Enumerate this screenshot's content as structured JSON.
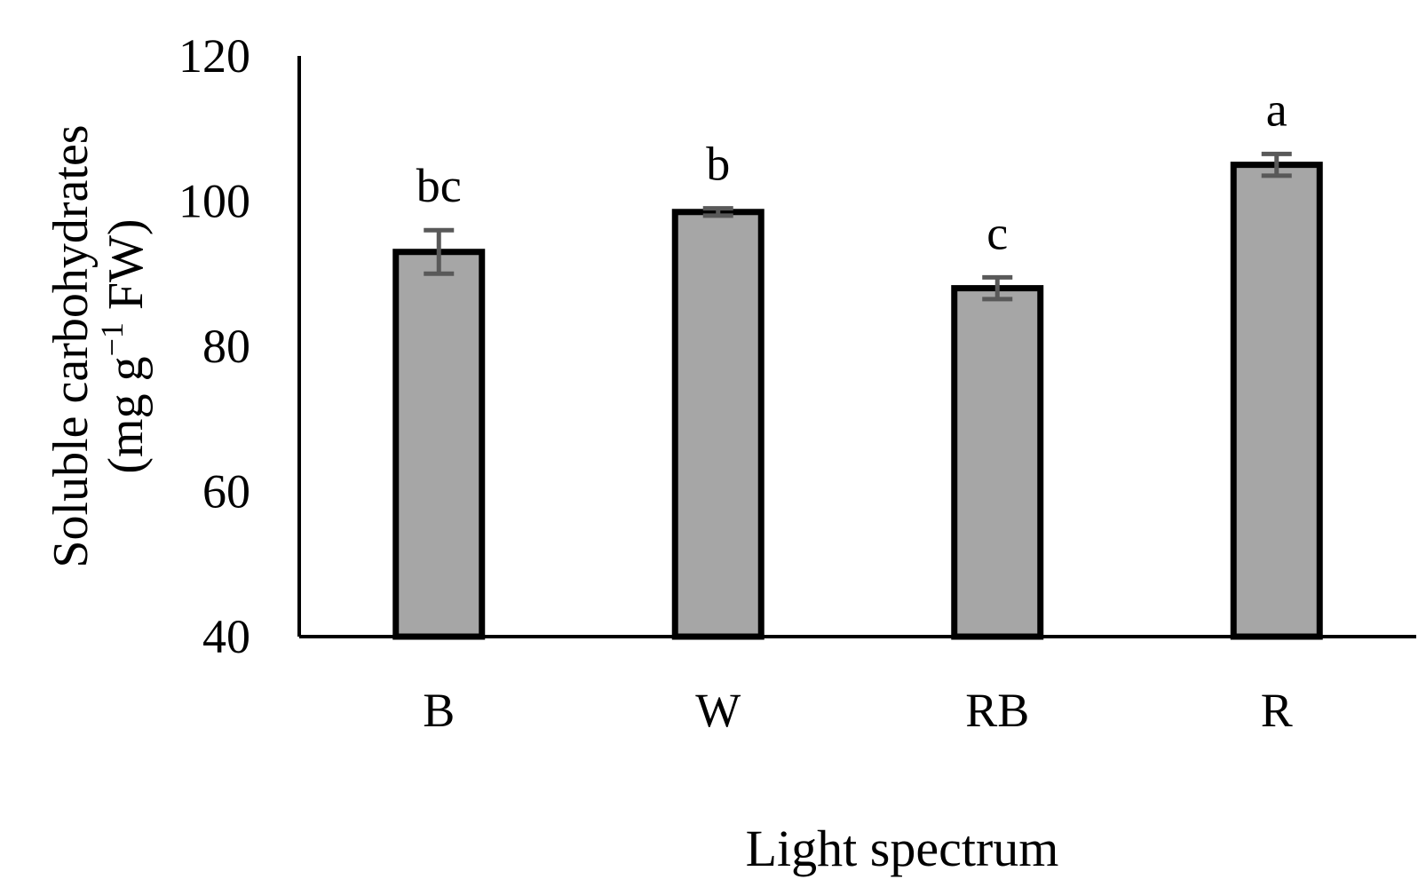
{
  "chart_data": {
    "type": "bar",
    "categories": [
      "B",
      "W",
      "RB",
      "R"
    ],
    "values": [
      93.0,
      98.5,
      88.0,
      105.0
    ],
    "errors": [
      3.0,
      0.5,
      1.5,
      1.5
    ],
    "significance": [
      "bc",
      "b",
      "c",
      "a"
    ],
    "xlabel": "Light spectrum",
    "ylabel": "Soluble carbohydrates",
    "ylabel_unit": {
      "prefix": "(mg g",
      "superscript": "−1",
      "suffix": " FW)"
    },
    "ylim": [
      40,
      120
    ],
    "yticks": [
      40,
      60,
      80,
      100,
      120
    ],
    "grid": false,
    "legend": "none",
    "bar_color": "#a6a6a6",
    "bar_edge_color": "#000000",
    "error_bar_color": "#595959"
  }
}
